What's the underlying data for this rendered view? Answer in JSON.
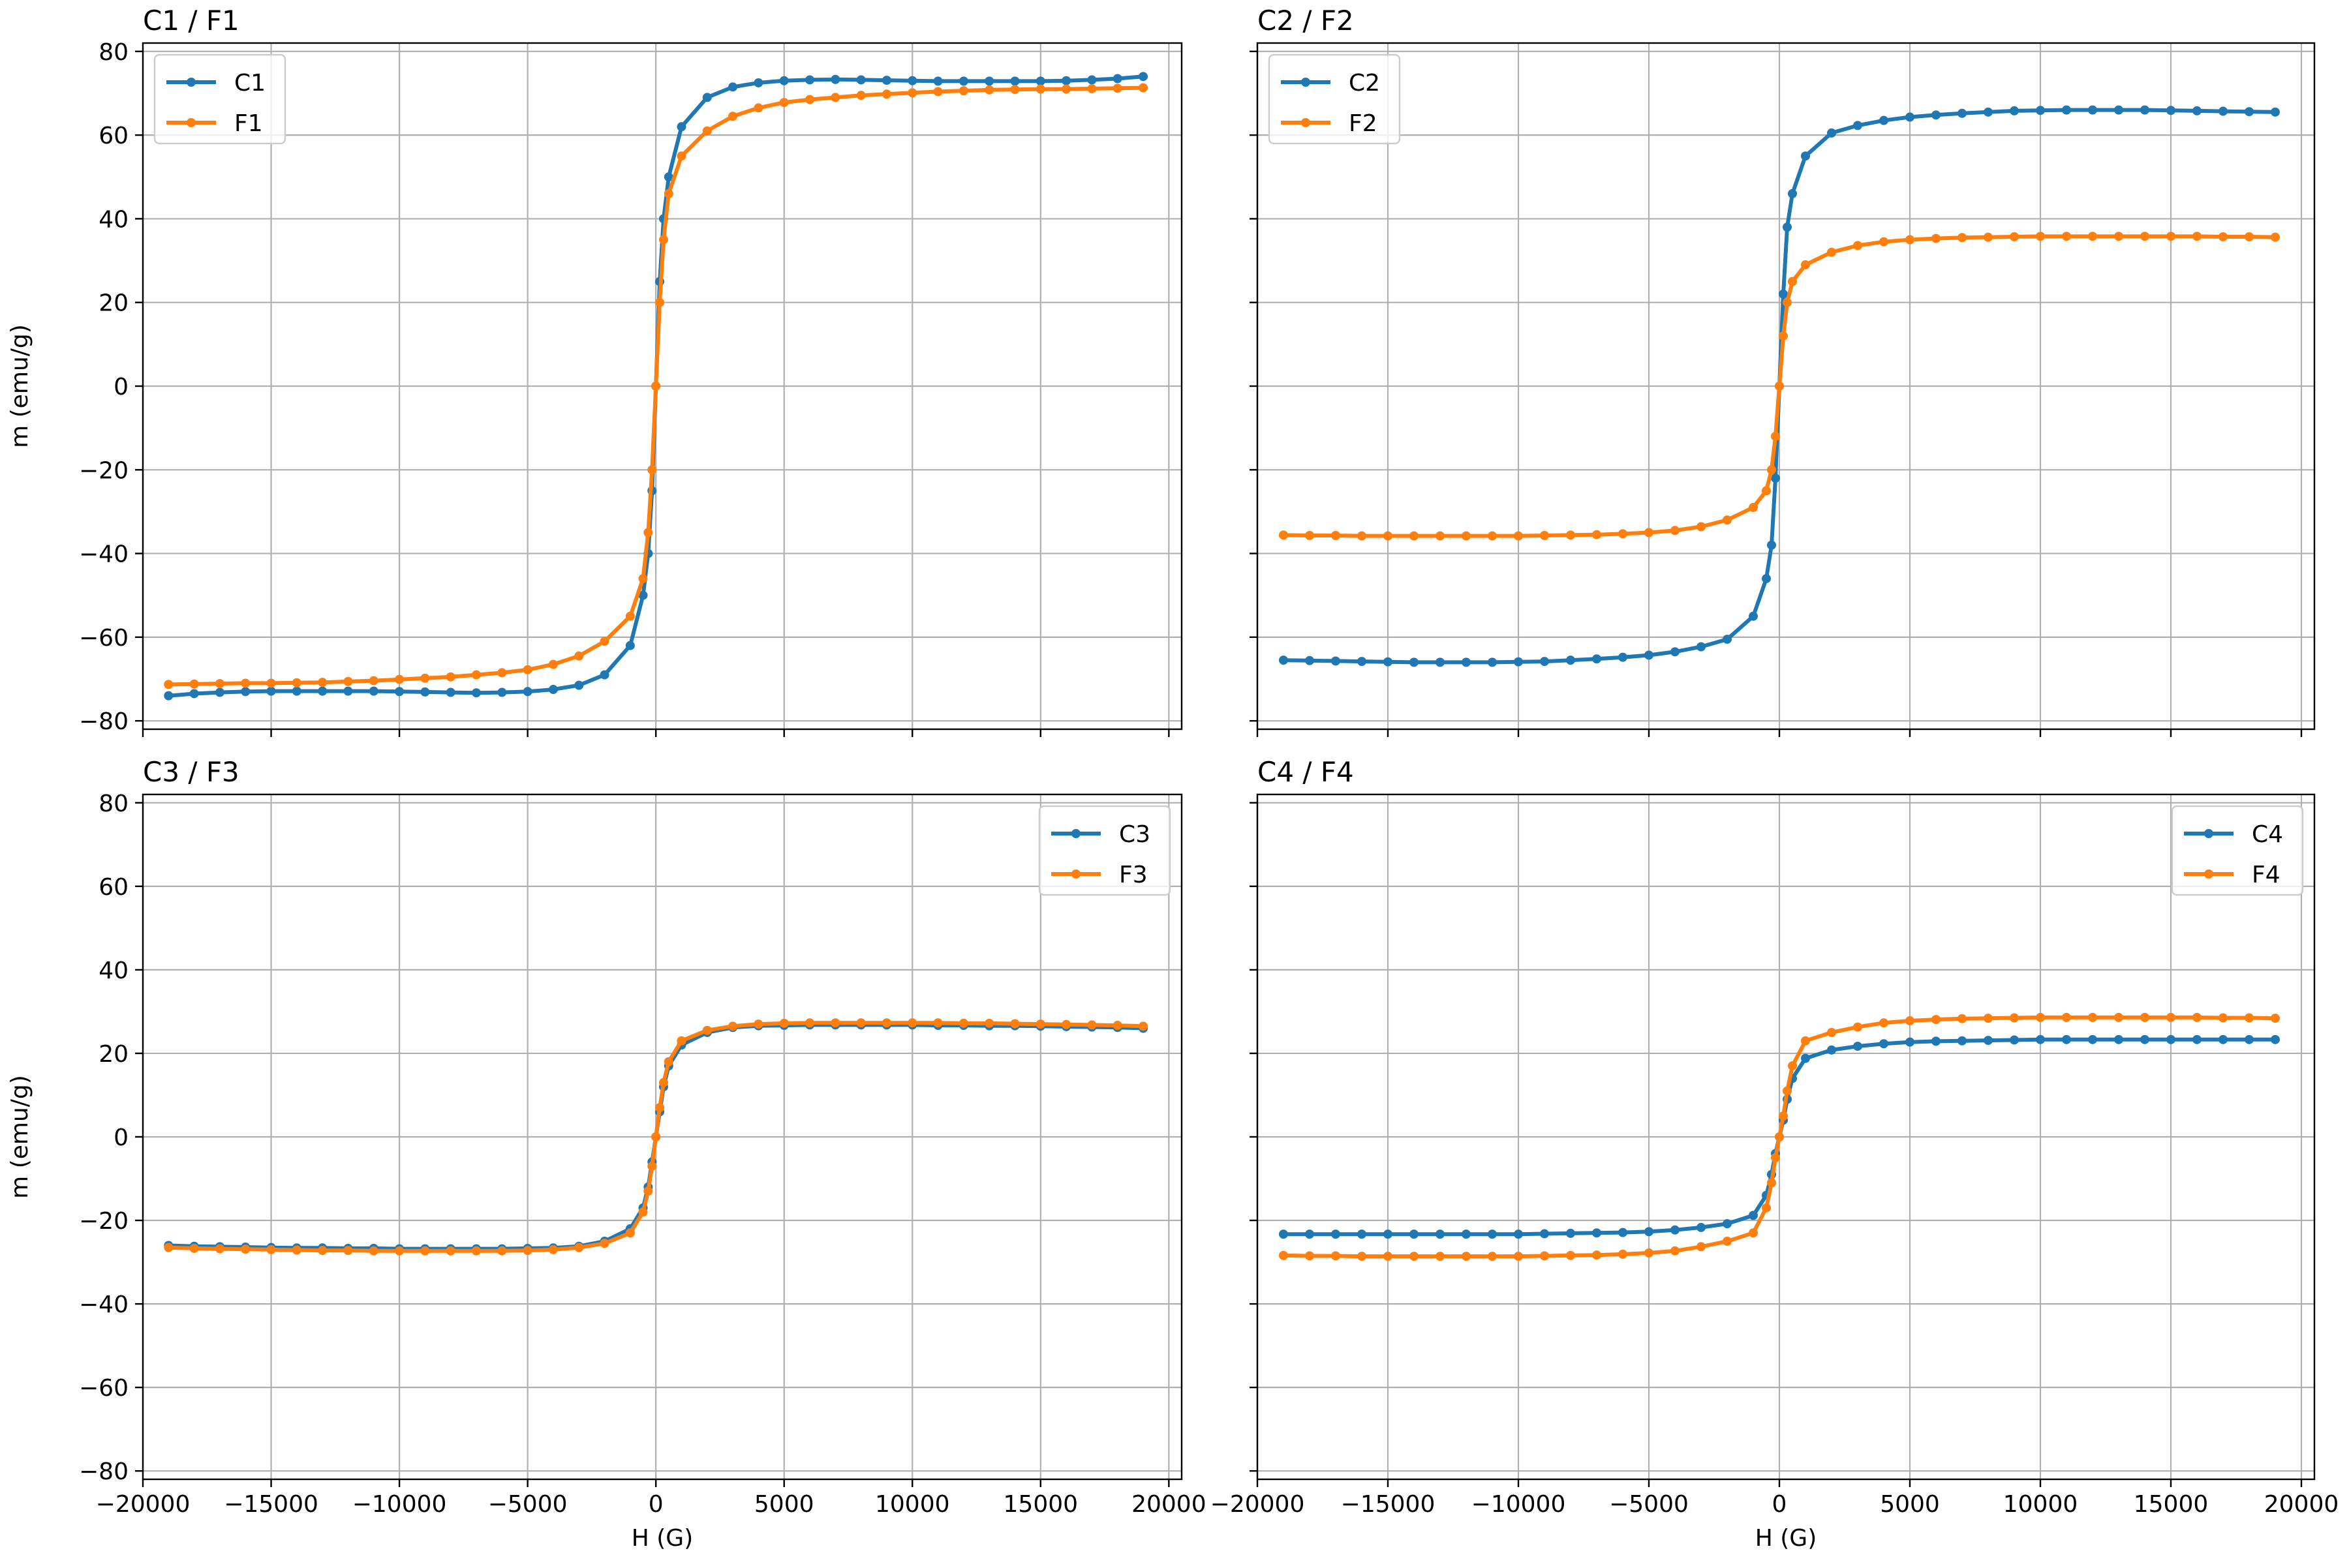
{
  "colors": {
    "C": "#1f77b4",
    "F": "#ff7f0e"
  },
  "axes_text": {
    "xlabel": "H (G)",
    "ylabel": "m (emu/g)",
    "x_ticks": [
      -20000,
      -15000,
      -10000,
      -5000,
      0,
      5000,
      10000,
      15000,
      20000
    ],
    "y_ticks": [
      -80,
      -60,
      -40,
      -20,
      0,
      20,
      40,
      60,
      80
    ]
  },
  "chart_data": [
    {
      "type": "line",
      "title": "C1 / F1",
      "xlim": [
        -20000,
        20500
      ],
      "ylim": [
        -82,
        82
      ],
      "grid": true,
      "legend": "upper-left",
      "x_tick_labels_shown": false,
      "y_tick_labels_shown": true,
      "series": [
        {
          "name": "C1",
          "color_key": "C",
          "x": [
            -19000,
            -18000,
            -17000,
            -16000,
            -15000,
            -14000,
            -13000,
            -12000,
            -11000,
            -10000,
            -9000,
            -8000,
            -7000,
            -6000,
            -5000,
            -4000,
            -3000,
            -2000,
            -1000,
            -500,
            -300,
            -150,
            0,
            150,
            300,
            500,
            1000,
            2000,
            3000,
            4000,
            5000,
            6000,
            7000,
            8000,
            9000,
            10000,
            11000,
            12000,
            13000,
            14000,
            15000,
            16000,
            17000,
            18000,
            19000
          ],
          "y": [
            -74,
            -73.5,
            -73.2,
            -73.0,
            -72.9,
            -72.9,
            -72.9,
            -72.9,
            -72.9,
            -73.0,
            -73.1,
            -73.2,
            -73.3,
            -73.2,
            -73.0,
            -72.5,
            -71.5,
            -69,
            -62,
            -50,
            -40,
            -25,
            0,
            25,
            40,
            50,
            62,
            69,
            71.5,
            72.5,
            73.0,
            73.2,
            73.3,
            73.2,
            73.1,
            73.0,
            72.9,
            72.9,
            72.9,
            72.9,
            72.9,
            73.0,
            73.2,
            73.5,
            74
          ]
        },
        {
          "name": "F1",
          "color_key": "F",
          "x": [
            -19000,
            -18000,
            -17000,
            -16000,
            -15000,
            -14000,
            -13000,
            -12000,
            -11000,
            -10000,
            -9000,
            -8000,
            -7000,
            -6000,
            -5000,
            -4000,
            -3000,
            -2000,
            -1000,
            -500,
            -300,
            -150,
            0,
            150,
            300,
            500,
            1000,
            2000,
            3000,
            4000,
            5000,
            6000,
            7000,
            8000,
            9000,
            10000,
            11000,
            12000,
            13000,
            14000,
            15000,
            16000,
            17000,
            18000,
            19000
          ],
          "y": [
            -71.3,
            -71.2,
            -71.1,
            -71.0,
            -71.0,
            -70.9,
            -70.8,
            -70.6,
            -70.4,
            -70.1,
            -69.8,
            -69.5,
            -69.0,
            -68.5,
            -67.8,
            -66.5,
            -64.5,
            -61,
            -55,
            -46,
            -35,
            -20,
            0,
            20,
            35,
            46,
            55,
            61,
            64.5,
            66.5,
            67.8,
            68.5,
            69.0,
            69.5,
            69.8,
            70.1,
            70.4,
            70.6,
            70.8,
            70.9,
            71.0,
            71.0,
            71.1,
            71.2,
            71.3
          ]
        }
      ]
    },
    {
      "type": "line",
      "title": "C2 / F2",
      "xlim": [
        -20000,
        20500
      ],
      "ylim": [
        -82,
        82
      ],
      "grid": true,
      "legend": "upper-left",
      "x_tick_labels_shown": false,
      "y_tick_labels_shown": false,
      "series": [
        {
          "name": "C2",
          "color_key": "C",
          "x": [
            -19000,
            -18000,
            -17000,
            -16000,
            -15000,
            -14000,
            -13000,
            -12000,
            -11000,
            -10000,
            -9000,
            -8000,
            -7000,
            -6000,
            -5000,
            -4000,
            -3000,
            -2000,
            -1000,
            -500,
            -300,
            -150,
            0,
            150,
            300,
            500,
            1000,
            2000,
            3000,
            4000,
            5000,
            6000,
            7000,
            8000,
            9000,
            10000,
            11000,
            12000,
            13000,
            14000,
            15000,
            16000,
            17000,
            18000,
            19000
          ],
          "y": [
            -65.5,
            -65.6,
            -65.7,
            -65.8,
            -65.9,
            -66.0,
            -66.0,
            -66.0,
            -66.0,
            -65.9,
            -65.8,
            -65.5,
            -65.2,
            -64.8,
            -64.3,
            -63.5,
            -62.3,
            -60.5,
            -55,
            -46,
            -38,
            -22,
            0,
            22,
            38,
            46,
            55,
            60.5,
            62.3,
            63.5,
            64.3,
            64.8,
            65.2,
            65.5,
            65.8,
            65.9,
            66.0,
            66.0,
            66.0,
            66.0,
            65.9,
            65.8,
            65.7,
            65.6,
            65.5
          ]
        },
        {
          "name": "F2",
          "color_key": "F",
          "x": [
            -19000,
            -18000,
            -17000,
            -16000,
            -15000,
            -14000,
            -13000,
            -12000,
            -11000,
            -10000,
            -9000,
            -8000,
            -7000,
            -6000,
            -5000,
            -4000,
            -3000,
            -2000,
            -1000,
            -500,
            -300,
            -150,
            0,
            150,
            300,
            500,
            1000,
            2000,
            3000,
            4000,
            5000,
            6000,
            7000,
            8000,
            9000,
            10000,
            11000,
            12000,
            13000,
            14000,
            15000,
            16000,
            17000,
            18000,
            19000
          ],
          "y": [
            -35.6,
            -35.7,
            -35.7,
            -35.8,
            -35.8,
            -35.8,
            -35.8,
            -35.8,
            -35.8,
            -35.8,
            -35.7,
            -35.6,
            -35.5,
            -35.3,
            -35.0,
            -34.5,
            -33.6,
            -32,
            -29,
            -25,
            -20,
            -12,
            0,
            12,
            20,
            25,
            29,
            32,
            33.6,
            34.5,
            35.0,
            35.3,
            35.5,
            35.6,
            35.7,
            35.8,
            35.8,
            35.8,
            35.8,
            35.8,
            35.8,
            35.8,
            35.7,
            35.7,
            35.6
          ]
        }
      ]
    },
    {
      "type": "line",
      "title": "C3 / F3",
      "xlim": [
        -20000,
        20500
      ],
      "ylim": [
        -82,
        82
      ],
      "grid": true,
      "legend": "upper-right",
      "x_tick_labels_shown": true,
      "y_tick_labels_shown": true,
      "series": [
        {
          "name": "C3",
          "color_key": "C",
          "x": [
            -19000,
            -18000,
            -17000,
            -16000,
            -15000,
            -14000,
            -13000,
            -12000,
            -11000,
            -10000,
            -9000,
            -8000,
            -7000,
            -6000,
            -5000,
            -4000,
            -3000,
            -2000,
            -1000,
            -500,
            -300,
            -150,
            0,
            150,
            300,
            500,
            1000,
            2000,
            3000,
            4000,
            5000,
            6000,
            7000,
            8000,
            9000,
            10000,
            11000,
            12000,
            13000,
            14000,
            15000,
            16000,
            17000,
            18000,
            19000
          ],
          "y": [
            -26.0,
            -26.2,
            -26.3,
            -26.4,
            -26.5,
            -26.6,
            -26.6,
            -26.7,
            -26.7,
            -26.8,
            -26.8,
            -26.8,
            -26.8,
            -26.8,
            -26.7,
            -26.6,
            -26.2,
            -25.0,
            -22,
            -17,
            -12,
            -6,
            0,
            6,
            12,
            17,
            22,
            25.0,
            26.2,
            26.6,
            26.7,
            26.8,
            26.8,
            26.8,
            26.8,
            26.8,
            26.7,
            26.7,
            26.6,
            26.6,
            26.5,
            26.4,
            26.3,
            26.2,
            26.0
          ]
        },
        {
          "name": "F3",
          "color_key": "F",
          "x": [
            -19000,
            -18000,
            -17000,
            -16000,
            -15000,
            -14000,
            -13000,
            -12000,
            -11000,
            -10000,
            -9000,
            -8000,
            -7000,
            -6000,
            -5000,
            -4000,
            -3000,
            -2000,
            -1000,
            -500,
            -300,
            -150,
            0,
            150,
            300,
            500,
            1000,
            2000,
            3000,
            4000,
            5000,
            6000,
            7000,
            8000,
            9000,
            10000,
            11000,
            12000,
            13000,
            14000,
            15000,
            16000,
            17000,
            18000,
            19000
          ],
          "y": [
            -26.5,
            -26.7,
            -26.8,
            -26.9,
            -27.0,
            -27.1,
            -27.2,
            -27.2,
            -27.3,
            -27.3,
            -27.3,
            -27.3,
            -27.3,
            -27.3,
            -27.2,
            -27.0,
            -26.5,
            -25.5,
            -23,
            -18,
            -13,
            -7,
            0,
            7,
            13,
            18,
            23,
            25.5,
            26.5,
            27.0,
            27.2,
            27.3,
            27.3,
            27.3,
            27.3,
            27.3,
            27.3,
            27.2,
            27.2,
            27.1,
            27.0,
            26.9,
            26.8,
            26.7,
            26.5
          ]
        }
      ]
    },
    {
      "type": "line",
      "title": "C4 / F4",
      "xlim": [
        -20000,
        20500
      ],
      "ylim": [
        -82,
        82
      ],
      "grid": true,
      "legend": "upper-right",
      "x_tick_labels_shown": true,
      "y_tick_labels_shown": false,
      "series": [
        {
          "name": "C4",
          "color_key": "C",
          "x": [
            -19000,
            -18000,
            -17000,
            -16000,
            -15000,
            -14000,
            -13000,
            -12000,
            -11000,
            -10000,
            -9000,
            -8000,
            -7000,
            -6000,
            -5000,
            -4000,
            -3000,
            -2000,
            -1000,
            -500,
            -300,
            -150,
            0,
            150,
            300,
            500,
            1000,
            2000,
            3000,
            4000,
            5000,
            6000,
            7000,
            8000,
            9000,
            10000,
            11000,
            12000,
            13000,
            14000,
            15000,
            16000,
            17000,
            18000,
            19000
          ],
          "y": [
            -23.3,
            -23.3,
            -23.3,
            -23.3,
            -23.3,
            -23.3,
            -23.3,
            -23.3,
            -23.3,
            -23.3,
            -23.2,
            -23.1,
            -23.0,
            -22.9,
            -22.7,
            -22.3,
            -21.7,
            -20.8,
            -18.8,
            -14,
            -9,
            -4,
            0,
            4,
            9,
            14,
            18.8,
            20.8,
            21.7,
            22.3,
            22.7,
            22.9,
            23.0,
            23.1,
            23.2,
            23.3,
            23.3,
            23.3,
            23.3,
            23.3,
            23.3,
            23.3,
            23.3,
            23.3,
            23.3
          ]
        },
        {
          "name": "F4",
          "color_key": "F",
          "x": [
            -19000,
            -18000,
            -17000,
            -16000,
            -15000,
            -14000,
            -13000,
            -12000,
            -11000,
            -10000,
            -9000,
            -8000,
            -7000,
            -6000,
            -5000,
            -4000,
            -3000,
            -2000,
            -1000,
            -500,
            -300,
            -150,
            0,
            150,
            300,
            500,
            1000,
            2000,
            3000,
            4000,
            5000,
            6000,
            7000,
            8000,
            9000,
            10000,
            11000,
            12000,
            13000,
            14000,
            15000,
            16000,
            17000,
            18000,
            19000
          ],
          "y": [
            -28.4,
            -28.5,
            -28.5,
            -28.6,
            -28.6,
            -28.6,
            -28.6,
            -28.6,
            -28.6,
            -28.6,
            -28.5,
            -28.4,
            -28.3,
            -28.1,
            -27.8,
            -27.3,
            -26.3,
            -25.0,
            -23,
            -17,
            -11,
            -5,
            0,
            5,
            11,
            17,
            23,
            25.0,
            26.3,
            27.3,
            27.8,
            28.1,
            28.3,
            28.4,
            28.5,
            28.6,
            28.6,
            28.6,
            28.6,
            28.6,
            28.6,
            28.6,
            28.5,
            28.5,
            28.4
          ]
        }
      ]
    }
  ]
}
